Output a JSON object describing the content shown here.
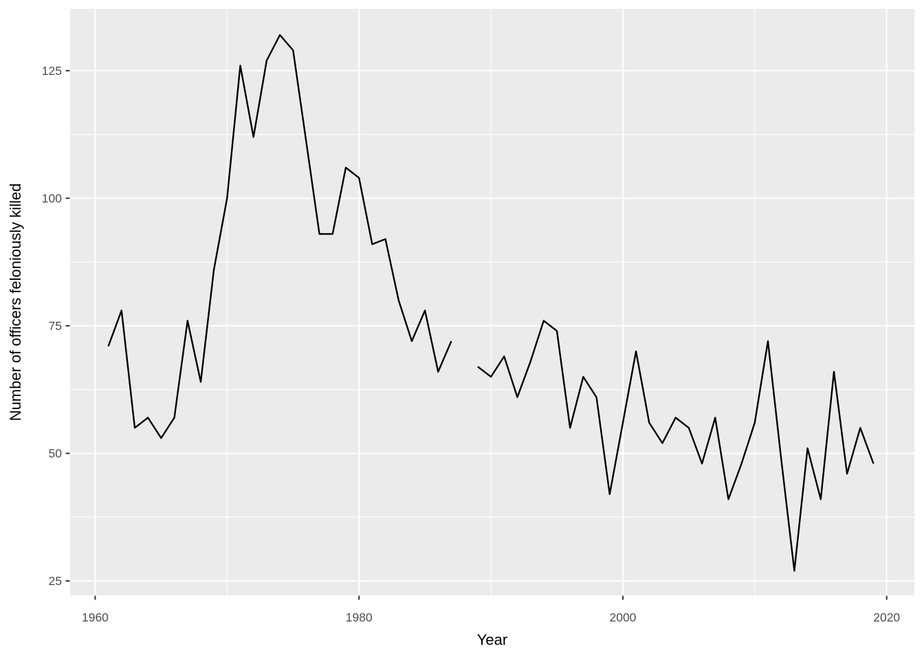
{
  "chart_data": {
    "type": "line",
    "title": "",
    "xlabel": "Year",
    "ylabel": "Number of officers feloniously killed",
    "x_ticks": [
      1960,
      1980,
      2000,
      2020
    ],
    "x_minor_ticks": [
      1970,
      1990,
      2010
    ],
    "y_ticks": [
      25,
      50,
      75,
      100,
      125
    ],
    "y_minor_ticks": [
      37.5,
      62.5,
      87.5,
      112.5
    ],
    "xlim": [
      1958.1,
      2022.1
    ],
    "ylim": [
      22.17,
      137.1
    ],
    "grid": true,
    "legend": false,
    "missing_years": [
      1988
    ],
    "series": [
      {
        "name": "officers-feloniously-killed",
        "x": [
          1961,
          1962,
          1963,
          1964,
          1965,
          1966,
          1967,
          1968,
          1969,
          1970,
          1971,
          1972,
          1973,
          1974,
          1975,
          1976,
          1977,
          1978,
          1979,
          1980,
          1981,
          1982,
          1983,
          1984,
          1985,
          1986,
          1987,
          1988,
          1989,
          1990,
          1991,
          1992,
          1993,
          1994,
          1995,
          1996,
          1997,
          1998,
          1999,
          2000,
          2001,
          2002,
          2003,
          2004,
          2005,
          2006,
          2007,
          2008,
          2009,
          2010,
          2011,
          2012,
          2013,
          2014,
          2015,
          2016,
          2017,
          2018,
          2019
        ],
        "y": [
          71,
          78,
          55,
          57,
          53,
          57,
          76,
          64,
          86,
          100,
          126,
          112,
          127,
          132,
          129,
          111,
          93,
          93,
          106,
          104,
          91,
          92,
          80,
          72,
          78,
          66,
          72,
          null,
          67,
          65,
          69,
          61,
          68,
          76,
          74,
          55,
          65,
          61,
          42,
          56,
          70,
          56,
          52,
          57,
          55,
          48,
          57,
          41,
          48,
          56,
          72,
          49,
          27,
          51,
          41,
          66,
          46,
          55,
          48
        ]
      }
    ]
  },
  "style": {
    "background": "#FFFFFF",
    "panel_bg": "#EBEBEB",
    "grid_color": "#FFFFFF",
    "line_color": "#000000",
    "tick_mark_color": "#333333",
    "tick_label_color": "#4D4D4D",
    "axis_title_color": "#000000"
  }
}
